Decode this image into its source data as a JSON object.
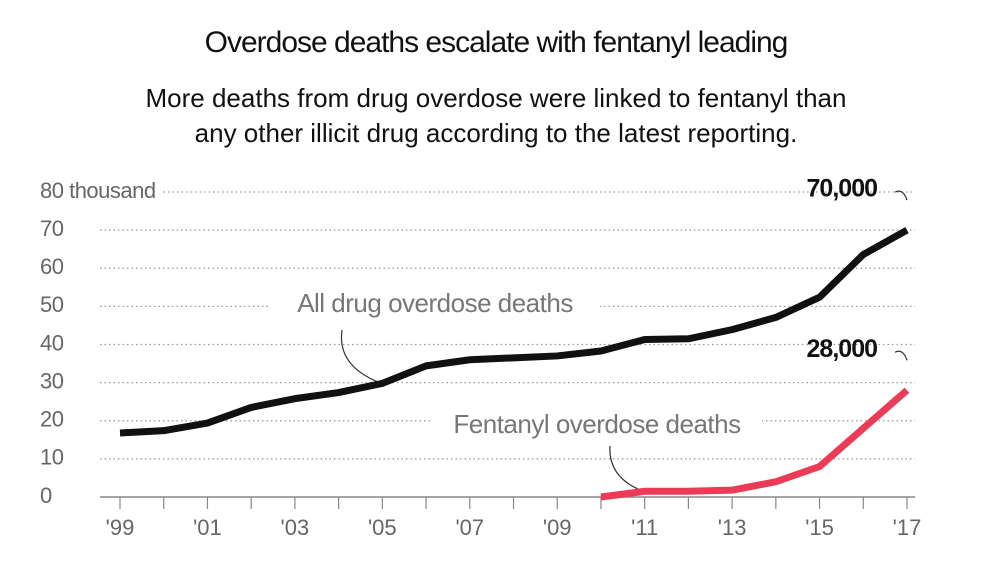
{
  "chart_data": {
    "type": "line",
    "title": "Overdose deaths escalate with fentanyl leading",
    "subtitle": [
      "More deaths from drug overdose were linked to fentanyl than",
      "any other illicit drug according to the latest reporting."
    ],
    "categories": [
      "'99",
      null,
      "'01",
      null,
      "'03",
      null,
      "'05",
      null,
      "'07",
      null,
      "'09",
      null,
      "'11",
      null,
      "'13",
      null,
      "'15",
      null,
      "'17"
    ],
    "series": [
      {
        "name": "All drug overdose deaths",
        "color": "#111111",
        "values": [
          16.8,
          17.4,
          19.4,
          23.5,
          25.8,
          27.4,
          29.8,
          34.4,
          36.0,
          36.5,
          37.0,
          38.3,
          41.3,
          41.5,
          43.9,
          47.1,
          52.4,
          63.6,
          70
        ],
        "value_labels": [
          null,
          null,
          null,
          null,
          null,
          null,
          null,
          null,
          null,
          null,
          null,
          null,
          null,
          null,
          null,
          null,
          null,
          null,
          "70,000"
        ]
      },
      {
        "name": "Fentanyl overdose deaths",
        "color": "#ec3b57",
        "values": [
          null,
          null,
          null,
          null,
          null,
          null,
          null,
          null,
          null,
          null,
          null,
          0,
          1.5,
          1.5,
          1.8,
          4,
          8,
          18,
          28
        ],
        "value_labels": [
          null,
          null,
          null,
          null,
          null,
          null,
          null,
          null,
          null,
          null,
          null,
          null,
          null,
          null,
          null,
          null,
          null,
          null,
          "28,000"
        ]
      }
    ],
    "ylim": [
      0,
      80
    ],
    "yticks": [
      0,
      10,
      20,
      30,
      40,
      50,
      60,
      70,
      {
        "value": 80,
        "label": "80 thousand"
      }
    ],
    "grid": true
  }
}
